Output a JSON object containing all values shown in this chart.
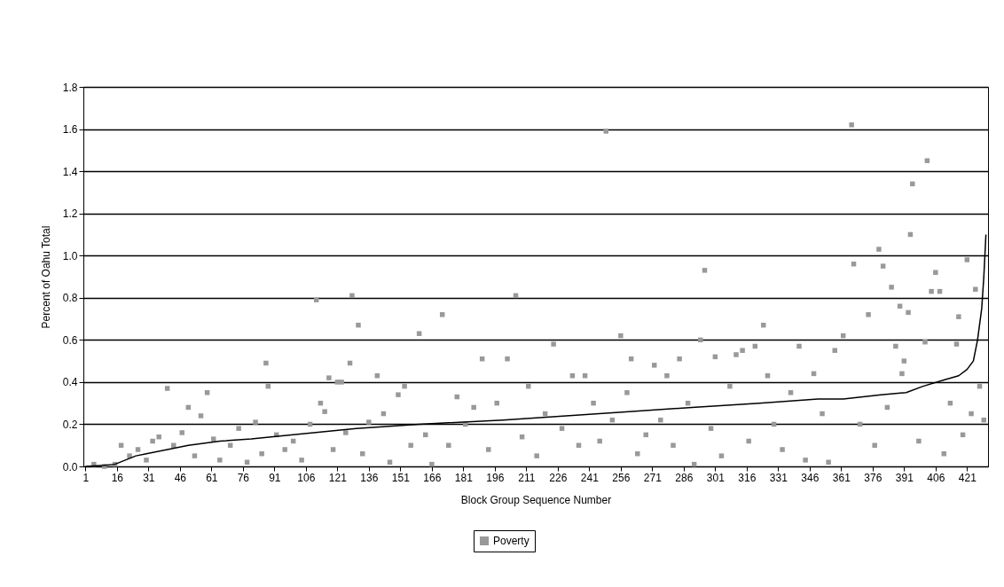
{
  "chart_data": {
    "type": "scatter",
    "xlabel": "Block Group Sequence Number",
    "ylabel": "Percent of Oahu Total",
    "xlim": [
      0,
      431
    ],
    "xticks": [
      1,
      16,
      31,
      46,
      61,
      76,
      91,
      106,
      121,
      136,
      151,
      166,
      181,
      196,
      211,
      226,
      241,
      256,
      271,
      286,
      301,
      316,
      331,
      346,
      361,
      376,
      391,
      406,
      421
    ],
    "ylim": [
      0,
      1.8
    ],
    "yticks": [
      {
        "value": 0,
        "label": "0.0"
      },
      0.2,
      0.4,
      0.6,
      0.8,
      {
        "value": 1,
        "label": "1.0"
      },
      1.2,
      1.4,
      1.6,
      1.8
    ],
    "grid": "y",
    "legend": "bottom",
    "series": [
      {
        "name": "Poverty",
        "marker": "square",
        "color": "#999999",
        "x": [
          5,
          10,
          15,
          18,
          22,
          26,
          30,
          33,
          36,
          40,
          43,
          47,
          50,
          53,
          56,
          59,
          62,
          65,
          70,
          74,
          78,
          82,
          85,
          87,
          88,
          92,
          96,
          100,
          104,
          108,
          111,
          113,
          115,
          117,
          119,
          121,
          123,
          125,
          127,
          128,
          131,
          133,
          136,
          140,
          143,
          146,
          150,
          153,
          156,
          160,
          163,
          166,
          171,
          174,
          178,
          182,
          186,
          190,
          193,
          197,
          202,
          206,
          209,
          212,
          216,
          220,
          224,
          228,
          233,
          236,
          239,
          243,
          246,
          249,
          252,
          256,
          259,
          261,
          264,
          268,
          272,
          275,
          278,
          281,
          284,
          288,
          291,
          294,
          296,
          299,
          301,
          304,
          308,
          311,
          314,
          317,
          320,
          324,
          326,
          329,
          333,
          337,
          341,
          344,
          348,
          352,
          355,
          358,
          362,
          366,
          367,
          370,
          374,
          377,
          379,
          381,
          383,
          385,
          387,
          389,
          390,
          391,
          393,
          394,
          395,
          398,
          401,
          402,
          404,
          406,
          408,
          410,
          413,
          416,
          417,
          419,
          421,
          423,
          425,
          427,
          429
        ],
        "values": [
          0.01,
          0.0,
          0.01,
          0.1,
          0.05,
          0.08,
          0.03,
          0.12,
          0.14,
          0.37,
          0.1,
          0.16,
          0.28,
          0.05,
          0.24,
          0.35,
          0.13,
          0.03,
          0.1,
          0.18,
          0.02,
          0.21,
          0.06,
          0.49,
          0.38,
          0.15,
          0.08,
          0.12,
          0.03,
          0.2,
          0.79,
          0.3,
          0.26,
          0.42,
          0.08,
          0.4,
          0.4,
          0.16,
          0.49,
          0.81,
          0.67,
          0.06,
          0.21,
          0.43,
          0.25,
          0.02,
          0.34,
          0.38,
          0.1,
          0.63,
          0.15,
          0.01,
          0.72,
          0.1,
          0.33,
          0.2,
          0.28,
          0.51,
          0.08,
          0.3,
          0.51,
          0.81,
          0.14,
          0.38,
          0.05,
          0.25,
          0.58,
          0.18,
          0.43,
          0.1,
          0.43,
          0.3,
          0.12,
          1.59,
          0.22,
          0.62,
          0.35,
          0.51,
          0.06,
          0.15,
          0.48,
          0.22,
          0.43,
          0.1,
          0.51,
          0.3,
          0.01,
          0.6,
          0.93,
          0.18,
          0.52,
          0.05,
          0.38,
          0.53,
          0.55,
          0.12,
          0.57,
          0.67,
          0.43,
          0.2,
          0.08,
          0.35,
          0.57,
          0.03,
          0.44,
          0.25,
          0.02,
          0.55,
          0.62,
          1.62,
          0.96,
          0.2,
          0.72,
          0.1,
          1.03,
          0.95,
          0.28,
          0.85,
          0.57,
          0.76,
          0.44,
          0.5,
          0.73,
          1.1,
          1.34,
          0.12,
          0.59,
          1.45,
          0.83,
          0.92,
          0.83,
          0.06,
          0.3,
          0.58,
          0.71,
          0.15,
          0.98,
          0.25,
          0.84,
          0.38,
          0.22
        ]
      },
      {
        "type": "line",
        "color": "#000000",
        "x": [
          1,
          10,
          15,
          20,
          25,
          30,
          40,
          50,
          65,
          80,
          100,
          130,
          160,
          200,
          230,
          260,
          290,
          322,
          350,
          362,
          380,
          392,
          400,
          410,
          417,
          421,
          424,
          426,
          428,
          429,
          430
        ],
        "values": [
          0.0,
          0.005,
          0.01,
          0.03,
          0.05,
          0.06,
          0.08,
          0.1,
          0.12,
          0.13,
          0.15,
          0.18,
          0.2,
          0.22,
          0.24,
          0.26,
          0.28,
          0.3,
          0.32,
          0.32,
          0.34,
          0.35,
          0.38,
          0.41,
          0.43,
          0.46,
          0.5,
          0.6,
          0.75,
          0.9,
          1.1
        ]
      }
    ]
  }
}
